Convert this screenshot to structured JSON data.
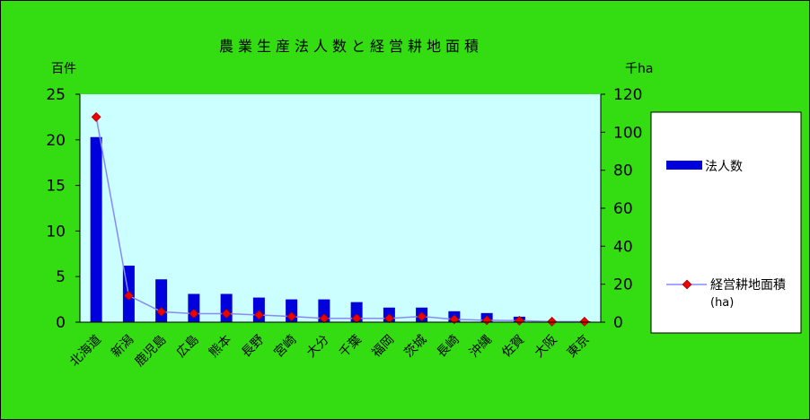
{
  "colors": {
    "background": "#33dd11",
    "plot_area": "#ccffff",
    "bar": "#0000dd",
    "line": "#8888ff",
    "marker": "#ee0000",
    "legend_bg": "#ffffff"
  },
  "chart_data": {
    "type": "bar",
    "title": "農業生産法人数と経営耕地面積",
    "y_left_label": "百件",
    "y_right_label": "千ha",
    "categories": [
      "北海道",
      "新潟",
      "鹿児島",
      "広島",
      "熊本",
      "長野",
      "宮崎",
      "大分",
      "千葉",
      "福岡",
      "茨城",
      "長崎",
      "沖縄",
      "佐賀",
      "大阪",
      "東京"
    ],
    "y_left_range": [
      0,
      25
    ],
    "y_left_ticks": [
      "0",
      "5",
      "10",
      "15",
      "20",
      "25"
    ],
    "y_right_range": [
      0,
      120
    ],
    "y_right_ticks": [
      "0",
      "20",
      "40",
      "60",
      "80",
      "100",
      "120"
    ],
    "series": [
      {
        "name": "法人数",
        "type": "bar",
        "axis": "left",
        "values": [
          20.3,
          6.2,
          4.7,
          3.1,
          3.1,
          2.7,
          2.5,
          2.5,
          2.2,
          1.6,
          1.6,
          1.2,
          1.0,
          0.6,
          0.1,
          0.1
        ]
      },
      {
        "name": "経営耕地面積",
        "unit_note": "(ha)",
        "type": "line",
        "axis": "right",
        "values": [
          108,
          14,
          5.5,
          4.5,
          4.5,
          3.8,
          3,
          2,
          2,
          2,
          3,
          1.5,
          1,
          0.8,
          0.3,
          0.3
        ]
      }
    ],
    "grid": false,
    "legend_position": "right"
  }
}
